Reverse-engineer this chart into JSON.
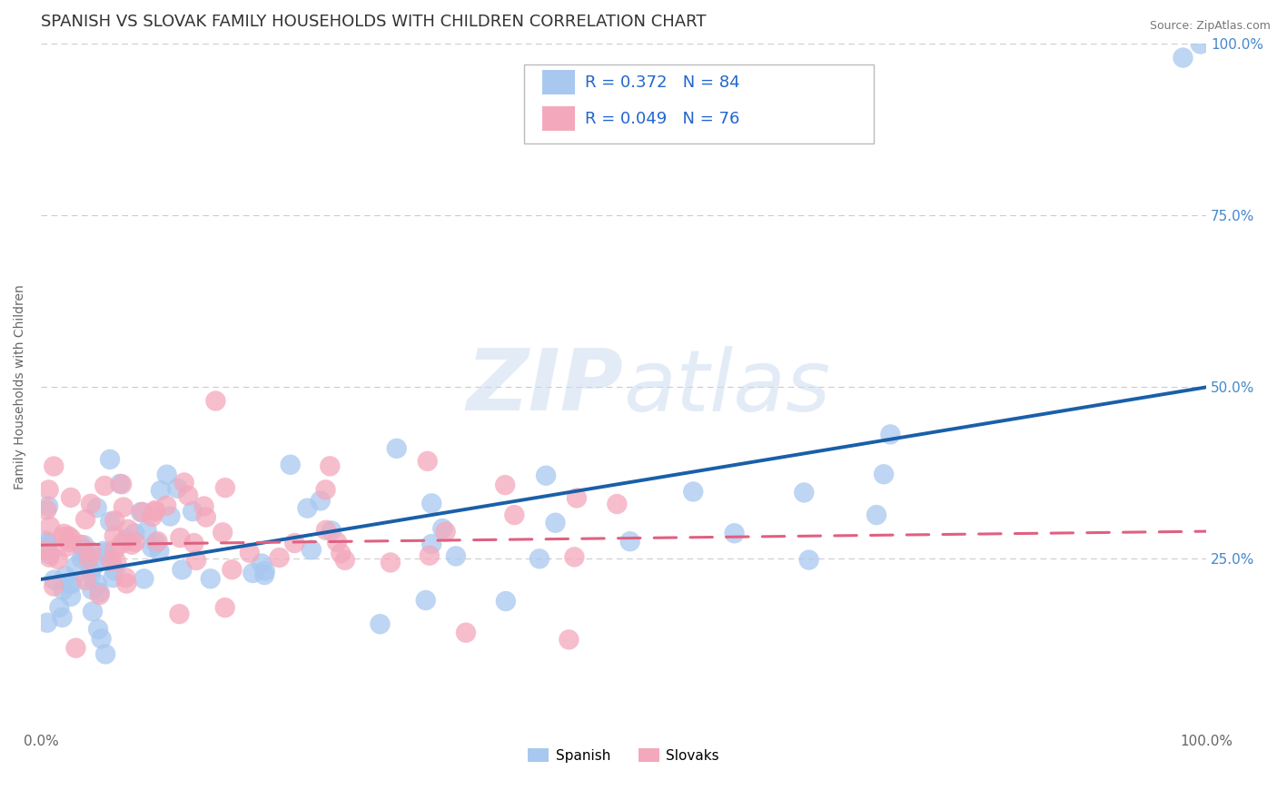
{
  "title": "SPANISH VS SLOVAK FAMILY HOUSEHOLDS WITH CHILDREN CORRELATION CHART",
  "source": "Source: ZipAtlas.com",
  "ylabel": "Family Households with Children",
  "xlim": [
    0,
    1
  ],
  "ylim": [
    0,
    1
  ],
  "spanish_color": "#a8c8f0",
  "slovak_color": "#f4a8bc",
  "spanish_line_color": "#1a5fa8",
  "slovak_line_color": "#e06080",
  "legend_R": [
    0.372,
    0.049
  ],
  "legend_N": [
    84,
    76
  ],
  "watermark": "ZIPatlas",
  "background_color": "#ffffff",
  "grid_color": "#cccccc",
  "title_fontsize": 13,
  "right_tick_color": "#4488cc",
  "tick_fontsize": 11
}
